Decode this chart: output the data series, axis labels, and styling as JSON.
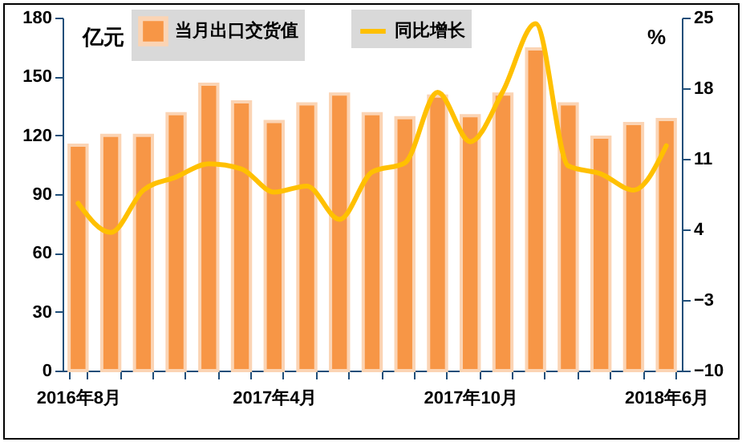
{
  "chart_data": {
    "type": "bar",
    "categories": [
      "2016年8月",
      null,
      null,
      null,
      null,
      null,
      "2017年4月",
      null,
      null,
      null,
      null,
      null,
      "2017年10月",
      null,
      null,
      null,
      null,
      null,
      "2018年6月"
    ],
    "series": [
      {
        "name": "当月出口交货值",
        "color": "#f79646",
        "values": [
          115,
          120,
          120,
          131,
          146,
          137,
          127,
          136,
          141,
          131,
          129,
          140,
          130,
          141,
          164,
          136,
          119,
          126,
          128
        ]
      },
      {
        "name": "同比增长",
        "type": "line",
        "axis": "y2",
        "color": "#ffc000",
        "values": [
          6.6,
          3.7,
          7.9,
          9.2,
          10.5,
          10.0,
          7.7,
          8.3,
          5.0,
          9.7,
          10.6,
          17.6,
          12.7,
          17.7,
          24.4,
          10.3,
          9.5,
          7.9,
          12.3
        ]
      }
    ],
    "ylabel": "亿元",
    "y2label": "%",
    "ylim": [
      0,
      180
    ],
    "yticks": [
      0,
      30,
      60,
      90,
      120,
      150,
      180
    ],
    "y2lim": [
      -10,
      25
    ],
    "y2ticks": [
      -10,
      -3,
      4,
      11,
      18,
      25
    ],
    "legend": "top"
  }
}
